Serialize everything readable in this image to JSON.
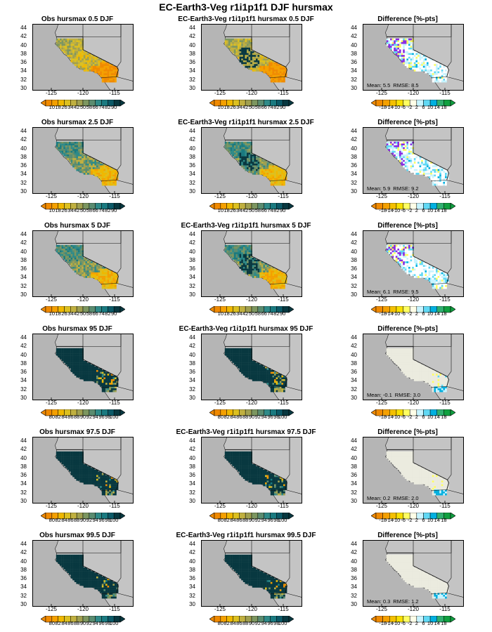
{
  "main_title": "EC-Earth3-Veg r1i1p1f1 DJF hursmax",
  "map_axes": {
    "x_ticks": [
      "-125",
      "-120",
      "-115"
    ],
    "y_ticks": [
      "44",
      "42",
      "40",
      "38",
      "36",
      "34",
      "32",
      "30"
    ]
  },
  "colorbars": {
    "low_pct": {
      "labels": [
        "10",
        "18",
        "26",
        "34",
        "42",
        "50",
        "58",
        "66",
        "74",
        "82",
        "90"
      ],
      "colors": [
        "#f08a00",
        "#f4a000",
        "#efb800",
        "#dcc020",
        "#c0b040",
        "#a0a050",
        "#7c9660",
        "#5a8c70",
        "#2f8a88",
        "#1a7a80",
        "#0c5a68",
        "#083840"
      ]
    },
    "high_pct": {
      "labels": [
        "80",
        "82",
        "84",
        "86",
        "88",
        "90",
        "92",
        "94",
        "96",
        "98",
        "100"
      ],
      "colors": [
        "#f08a00",
        "#f4a000",
        "#efb800",
        "#dcc020",
        "#c0b040",
        "#a0a050",
        "#7c9660",
        "#5a8c70",
        "#2f8a88",
        "#1a7a80",
        "#0c5a68",
        "#083840"
      ]
    },
    "diff": {
      "labels": [
        "-18",
        "-14",
        "-10",
        "-6",
        "-2",
        "2",
        "6",
        "10",
        "14",
        "18"
      ],
      "colors": [
        "#f08a00",
        "#f4a000",
        "#f4c000",
        "#f8e000",
        "#ffff60",
        "#ffffe8",
        "#c8f4ff",
        "#60d8f4",
        "#00b0e0",
        "#30b070",
        "#10a040"
      ]
    }
  },
  "rows": [
    {
      "obs_title": "Obs hursmax 0.5 DJF",
      "model_title": "EC-Earth3-Veg r1i1p1f1 hursmax 0.5 DJF",
      "diff_title": "Difference [%-pts]",
      "mean": "5.5",
      "rmse": "8.5",
      "scale": "low_pct"
    },
    {
      "obs_title": "Obs hursmax 2.5 DJF",
      "model_title": "EC-Earth3-Veg r1i1p1f1 hursmax 2.5 DJF",
      "diff_title": "Difference [%-pts]",
      "mean": "5.9",
      "rmse": "9.2",
      "scale": "low_pct"
    },
    {
      "obs_title": "Obs hursmax 5 DJF",
      "model_title": "EC-Earth3-Veg r1i1p1f1 hursmax 5 DJF",
      "diff_title": "Difference [%-pts]",
      "mean": "6.1",
      "rmse": "9.5",
      "scale": "low_pct"
    },
    {
      "obs_title": "Obs hursmax 95 DJF",
      "model_title": "EC-Earth3-Veg r1i1p1f1 hursmax 95 DJF",
      "diff_title": "Difference [%-pts]",
      "mean": "-0.1",
      "rmse": "3.0",
      "scale": "high_pct"
    },
    {
      "obs_title": "Obs hursmax 97.5 DJF",
      "model_title": "EC-Earth3-Veg r1i1p1f1 hursmax 97.5 DJF",
      "diff_title": "Difference [%-pts]",
      "mean": "0.2",
      "rmse": "2.0",
      "scale": "high_pct"
    },
    {
      "obs_title": "Obs hursmax 99.5 DJF",
      "model_title": "EC-Earth3-Veg r1i1p1f1 hursmax 99.5 DJF",
      "diff_title": "Difference [%-pts]",
      "mean": "0.3",
      "rmse": "1.2",
      "scale": "high_pct"
    }
  ],
  "stats_labels": {
    "mean": "Mean:",
    "rmse": "RMSE:"
  },
  "chart_data": {
    "type": "heatmap",
    "title": "EC-Earth3-Veg r1i1p1f1 DJF hursmax",
    "season": "DJF",
    "variable": "hursmax",
    "percentiles": [
      0.5,
      2.5,
      5,
      95,
      97.5,
      99.5
    ],
    "columns": [
      "Obs",
      "EC-Earth3-Veg r1i1p1f1",
      "Difference [%-pts]"
    ],
    "lon_range": [
      -128,
      -112
    ],
    "lat_range": [
      29.5,
      45
    ],
    "difference_stats": [
      {
        "percentile": 0.5,
        "mean": 5.5,
        "rmse": 8.5
      },
      {
        "percentile": 2.5,
        "mean": 5.9,
        "rmse": 9.2
      },
      {
        "percentile": 5,
        "mean": 6.1,
        "rmse": 9.5
      },
      {
        "percentile": 95,
        "mean": -0.1,
        "rmse": 3.0
      },
      {
        "percentile": 97.5,
        "mean": 0.2,
        "rmse": 2.0
      },
      {
        "percentile": 99.5,
        "mean": 0.3,
        "rmse": 1.2
      }
    ],
    "colorbar_ranges": {
      "rows_1_3": [
        10,
        90
      ],
      "rows_4_6": [
        80,
        100
      ],
      "difference": [
        -18,
        18
      ]
    }
  }
}
